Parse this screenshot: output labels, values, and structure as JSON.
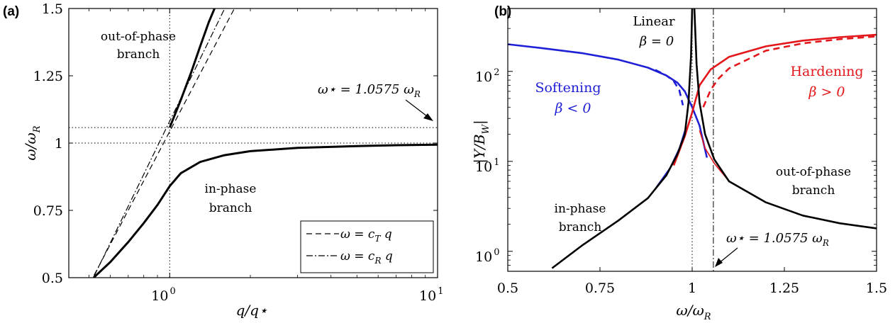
{
  "chart_data": [
    {
      "type": "line",
      "panel_label": "(a)",
      "xlabel": "q/q⋆",
      "ylabel": "ω/ω",
      "ylabel_sub": "R",
      "x_scale": "log",
      "xlim": [
        0.42,
        10
      ],
      "ylim": [
        0.5,
        1.5
      ],
      "x_ticks": [
        {
          "value": 1,
          "base": "10",
          "exp": "0"
        },
        {
          "value": 10,
          "base": "10",
          "exp": "1"
        }
      ],
      "y_ticks": [
        {
          "value": 0.5,
          "label": "0.5"
        },
        {
          "value": 0.75,
          "label": "0.75"
        },
        {
          "value": 1,
          "label": "1"
        },
        {
          "value": 1.25,
          "label": "1.25"
        },
        {
          "value": 1.5,
          "label": "1.5"
        }
      ],
      "reference_lines": {
        "vertical_x": 1,
        "horizontal_y": [
          1,
          1.0575
        ]
      },
      "omega_star": 1.0575,
      "cT_ratio": 0.86,
      "cR_ratio": 0.935,
      "series": [
        {
          "id": "in_phase",
          "style": "solid-thick",
          "x": [
            0.52,
            0.6,
            0.7,
            0.8,
            0.9,
            1.0,
            1.1,
            1.3,
            1.6,
            2.0,
            3.0,
            5.0,
            7.0,
            10.0
          ],
          "y": [
            0.5,
            0.558,
            0.632,
            0.703,
            0.77,
            0.84,
            0.888,
            0.93,
            0.955,
            0.97,
            0.982,
            0.989,
            0.992,
            0.994
          ]
        },
        {
          "id": "out_of_phase",
          "style": "solid-thick",
          "x": [
            1.0,
            1.1,
            1.2,
            1.3,
            1.4,
            1.47
          ],
          "y": [
            1.0575,
            1.16,
            1.26,
            1.36,
            1.45,
            1.5
          ]
        },
        {
          "name": "ω = c_T q",
          "style": "dashed",
          "x": [
            0.45,
            1.744
          ],
          "y": [
            0.387,
            1.5
          ]
        },
        {
          "name": "ω = c_R q",
          "style": "dashdot",
          "x": [
            0.5,
            1.604
          ],
          "y": [
            0.4675,
            1.5
          ]
        }
      ],
      "annotations": {
        "out_of_phase_line1": "out-of-phase",
        "out_of_phase_line2": "branch",
        "in_phase_line1": "in-phase",
        "in_phase_line2": "branch",
        "omega_star_text": "ω⋆ = 1.0575 ω",
        "omega_star_sub": "R"
      },
      "legend": {
        "position": "bottom-right",
        "entries": [
          {
            "lhs": "ω = c",
            "sub": "T",
            "rhs": " q",
            "style": "dashed"
          },
          {
            "lhs": "ω = c",
            "sub": "R",
            "rhs": " q",
            "style": "dashdot"
          }
        ]
      }
    },
    {
      "type": "line",
      "panel_label": "(b)",
      "xlabel": "ω/ω",
      "xlabel_sub": "R",
      "ylabel": "|Y/B",
      "ylabel_sub": "W",
      "ylabel_end": "|",
      "y_scale": "log",
      "xlim": [
        0.5,
        1.5
      ],
      "ylim": [
        0.6,
        500
      ],
      "x_ticks": [
        {
          "value": 0.5,
          "label": "0.5"
        },
        {
          "value": 0.75,
          "label": "0.75"
        },
        {
          "value": 1,
          "label": "1"
        },
        {
          "value": 1.25,
          "label": "1.25"
        },
        {
          "value": 1.5,
          "label": "1.5"
        }
      ],
      "y_ticks": [
        {
          "value": 1,
          "base": "10",
          "exp": "0"
        },
        {
          "value": 10,
          "base": "10",
          "exp": "1"
        },
        {
          "value": 100,
          "base": "10",
          "exp": "2"
        }
      ],
      "reference_lines": {
        "vertical_x": [
          1,
          1.0575
        ]
      },
      "colors": {
        "linear": "#000000",
        "softening": "#1f1fd6",
        "hardening": "#e3171b"
      },
      "series": [
        {
          "id": "linear_left",
          "color": "#000000",
          "x": [
            0.62,
            0.7,
            0.8,
            0.88,
            0.93,
            0.96,
            0.98,
            0.99,
            0.997,
            1.0
          ],
          "y": [
            0.65,
            1.15,
            2.2,
            3.9,
            7.0,
            12.0,
            20.0,
            45.0,
            150.0,
            500.0
          ]
        },
        {
          "id": "linear_right",
          "color": "#000000",
          "x": [
            1.006,
            1.012,
            1.02,
            1.035,
            1.06,
            1.1,
            1.2,
            1.3,
            1.4,
            1.5
          ],
          "y": [
            500.0,
            120.0,
            45.0,
            20.0,
            10.5,
            6.0,
            3.5,
            2.5,
            2.05,
            1.8
          ]
        },
        {
          "id": "softening_upper",
          "color": "#1f1fd6",
          "x": [
            0.5,
            0.6,
            0.7,
            0.8,
            0.88,
            0.93,
            0.96,
            0.98,
            1.0,
            1.02,
            1.04
          ],
          "y": [
            200.0,
            180.0,
            160.0,
            135.0,
            110.0,
            90.0,
            75.0,
            60.0,
            40.0,
            25.0,
            11.0
          ]
        },
        {
          "id": "softening_dashed",
          "color": "#1f1fd6",
          "dashed": true,
          "x": [
            0.9,
            0.93,
            0.95,
            0.965,
            0.975
          ],
          "y": [
            104.0,
            90.0,
            78.0,
            62.0,
            42.0
          ]
        },
        {
          "id": "softening_lower",
          "color": "#1f1fd6",
          "x": [
            0.9,
            0.94,
            0.965,
            0.98
          ],
          "y": [
            5.0,
            8.5,
            14.0,
            22.0
          ]
        },
        {
          "id": "hardening_upper",
          "color": "#e3171b",
          "x": [
            0.95,
            0.98,
            1.0,
            1.02,
            1.05,
            1.1,
            1.2,
            1.3,
            1.4,
            1.5
          ],
          "y": [
            9.0,
            19.0,
            35.0,
            70.0,
            105.0,
            145.0,
            190.0,
            220.0,
            240.0,
            255.0
          ]
        },
        {
          "id": "hardening_dashed",
          "color": "#e3171b",
          "dashed": true,
          "x": [
            1.03,
            1.05,
            1.07,
            1.1,
            1.2,
            1.3,
            1.4,
            1.5
          ],
          "y": [
            40.0,
            62.0,
            82.0,
            108.0,
            170.0,
            205.0,
            228.0,
            245.0
          ]
        },
        {
          "id": "hardening_lower",
          "color": "#e3171b",
          "x": [
            1.02,
            1.035,
            1.06,
            1.1
          ],
          "y": [
            22.0,
            14.0,
            9.5,
            6.0
          ]
        }
      ],
      "annotations": {
        "linear_line1": "Linear",
        "linear_line2": "β = 0",
        "softening_line1": "Softening",
        "softening_line2": "β < 0",
        "hardening_line1": "Hardening",
        "hardening_line2": "β > 0",
        "in_phase_line1": "in-phase",
        "in_phase_line2": "branch",
        "out_of_phase_line1": "out-of-phase",
        "out_of_phase_line2": "branch",
        "omega_star_text": "ω⋆ = 1.0575 ω",
        "omega_star_sub": "R"
      }
    }
  ]
}
